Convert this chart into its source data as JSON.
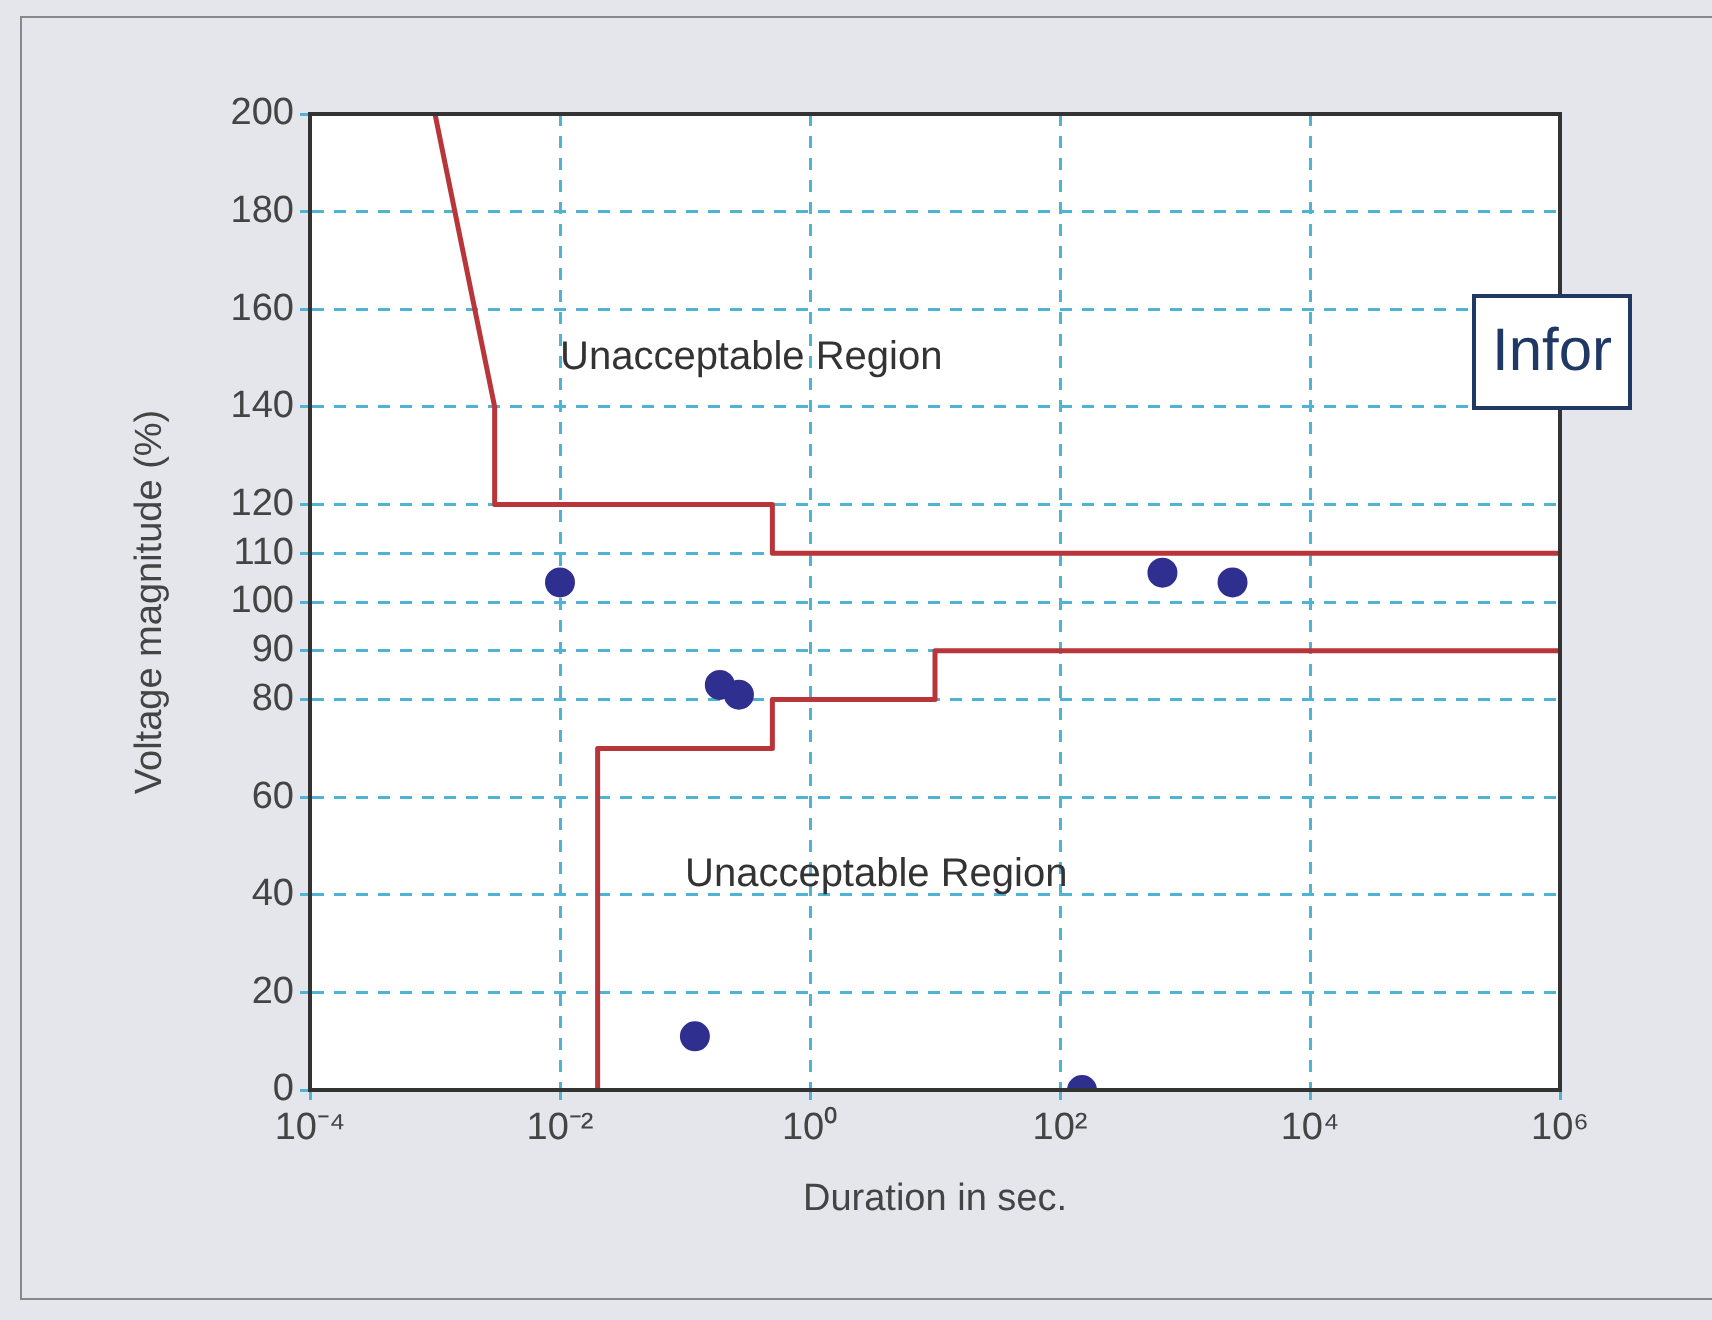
{
  "chart_data": {
    "type": "scatter",
    "xlabel": "Duration in sec.",
    "ylabel": "Voltage magnitude (%)",
    "log": "x",
    "xlim": [
      0.0001,
      1000000
    ],
    "xticks": [
      {
        "value": 0.0001,
        "label": "10⁻⁴"
      },
      {
        "value": 0.01,
        "label": "10⁻²"
      },
      {
        "value": 1,
        "label": "10⁰"
      },
      {
        "value": 100,
        "label": "10²"
      },
      {
        "value": 10000,
        "label": "10⁴"
      },
      {
        "value": 1000000,
        "label": "10⁶"
      }
    ],
    "ylim": [
      0,
      200
    ],
    "yticks": [
      0,
      20,
      40,
      60,
      80,
      90,
      100,
      110,
      120,
      140,
      160,
      180,
      200
    ],
    "grid": true,
    "legend": false,
    "series": [
      {
        "type": "line",
        "marker": "none",
        "color": "#b8353a",
        "x": [
          0.001,
          0.003,
          0.003,
          0.5,
          0.5,
          1000000
        ],
        "values": [
          200,
          140,
          120,
          120,
          110,
          110
        ]
      },
      {
        "type": "line",
        "marker": "none",
        "color": "#b8353a",
        "x": [
          0.02,
          0.02,
          0.5,
          0.5,
          10,
          10,
          1000000
        ],
        "values": [
          0,
          70,
          70,
          80,
          80,
          90,
          90
        ]
      },
      {
        "marker": "circle",
        "color": "#2e2f8f",
        "x": [
          0.01,
          0.19,
          0.27,
          0.12,
          150,
          660,
          2400
        ],
        "values": [
          104,
          83,
          81,
          11,
          0,
          106,
          104
        ]
      }
    ],
    "annotations": [
      "Unacceptable Region",
      "Unacceptable Region",
      "Infor"
    ]
  }
}
